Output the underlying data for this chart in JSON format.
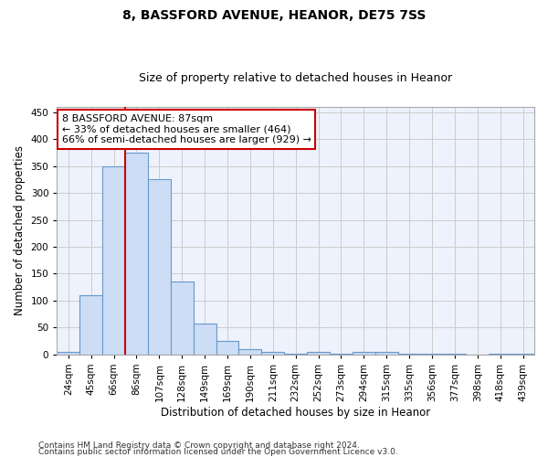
{
  "title": "8, BASSFORD AVENUE, HEANOR, DE75 7SS",
  "subtitle": "Size of property relative to detached houses in Heanor",
  "xlabel": "Distribution of detached houses by size in Heanor",
  "ylabel": "Number of detached properties",
  "categories": [
    "24sqm",
    "45sqm",
    "66sqm",
    "86sqm",
    "107sqm",
    "128sqm",
    "149sqm",
    "169sqm",
    "190sqm",
    "211sqm",
    "232sqm",
    "252sqm",
    "273sqm",
    "294sqm",
    "315sqm",
    "335sqm",
    "356sqm",
    "377sqm",
    "398sqm",
    "418sqm",
    "439sqm"
  ],
  "values": [
    4,
    110,
    350,
    375,
    325,
    135,
    57,
    25,
    10,
    5,
    2,
    5,
    2,
    5,
    5,
    2,
    1,
    1,
    0,
    1,
    2
  ],
  "bar_color": "#ccddf5",
  "bar_edge_color": "#6699cc",
  "vline_x": 3.0,
  "vline_color": "#cc0000",
  "annotation_line1": "8 BASSFORD AVENUE: 87sqm",
  "annotation_line2": "← 33% of detached houses are smaller (464)",
  "annotation_line3": "66% of semi-detached houses are larger (929) →",
  "annotation_box_color": "#ffffff",
  "annotation_box_edge_color": "#cc0000",
  "ylim": [
    0,
    460
  ],
  "yticks": [
    0,
    50,
    100,
    150,
    200,
    250,
    300,
    350,
    400,
    450
  ],
  "grid_color": "#cccccc",
  "bg_color": "#eef2fc",
  "footer_line1": "Contains HM Land Registry data © Crown copyright and database right 2024.",
  "footer_line2": "Contains public sector information licensed under the Open Government Licence v3.0.",
  "title_fontsize": 10,
  "subtitle_fontsize": 9,
  "xlabel_fontsize": 8.5,
  "ylabel_fontsize": 8.5,
  "tick_fontsize": 7.5,
  "annotation_fontsize": 8,
  "footer_fontsize": 6.5
}
